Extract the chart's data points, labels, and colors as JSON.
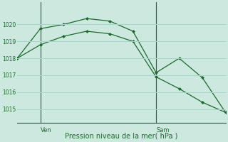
{
  "background_color": "#cce8df",
  "grid_color": "#aad4c8",
  "line_color": "#1a6b2a",
  "xlabel": "Pression niveau de la mer( hPa )",
  "ylim": [
    1014.2,
    1021.3
  ],
  "yticks": [
    1015,
    1016,
    1017,
    1018,
    1019,
    1020
  ],
  "line1_x": [
    0,
    1,
    2,
    3,
    4,
    5,
    6,
    7,
    8,
    9
  ],
  "line1_y": [
    1018.0,
    1019.75,
    1020.0,
    1020.35,
    1020.2,
    1019.6,
    1017.15,
    1018.0,
    1016.85,
    1014.8
  ],
  "line2_x": [
    0,
    1,
    2,
    3,
    4,
    5,
    6,
    7,
    8,
    9
  ],
  "line2_y": [
    1018.0,
    1018.8,
    1019.3,
    1019.6,
    1019.45,
    1019.0,
    1016.9,
    1016.2,
    1015.4,
    1014.8
  ],
  "ven_x": 1.0,
  "sam_x": 6.0,
  "ven_label": "Ven",
  "sam_label": "Sam",
  "xlim": [
    0,
    9
  ]
}
